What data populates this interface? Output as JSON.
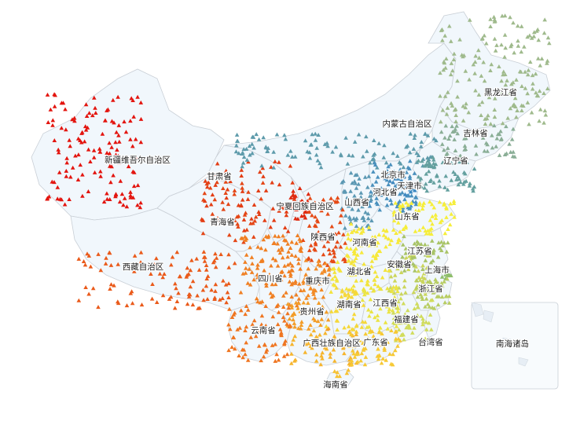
{
  "map": {
    "regions": [
      {
        "id": "xinjiang",
        "name": "新疆维吾尔自治区",
        "color": "#e3150f"
      },
      {
        "id": "xizang",
        "name": "西藏自治区",
        "color": "#ea5a1a"
      },
      {
        "id": "qinghai",
        "name": "青海省",
        "color": "#e44616"
      },
      {
        "id": "gansu",
        "name": "甘肃省",
        "color": "#e33d14"
      },
      {
        "id": "ningxia",
        "name": "宁夏回族自治区",
        "color": "#df2a10"
      },
      {
        "id": "neimenggu",
        "name": "内蒙古自治区",
        "color": "#5e9bab"
      },
      {
        "id": "heilongjiang",
        "name": "黑龙江省",
        "color": "#9fba8c"
      },
      {
        "id": "jilin",
        "name": "吉林省",
        "color": "#8aae96"
      },
      {
        "id": "liaoning",
        "name": "辽宁省",
        "color": "#64a09f"
      },
      {
        "id": "beijing",
        "name": "北京市",
        "color": "#3f87bd"
      },
      {
        "id": "tianjin",
        "name": "天津市",
        "color": "#3a86c0"
      },
      {
        "id": "hebei",
        "name": "河北省",
        "color": "#4a90bd"
      },
      {
        "id": "shanxi",
        "name": "山西省",
        "color": "#5b98b3"
      },
      {
        "id": "shaanxi",
        "name": "陕西省",
        "color": "#e54a16"
      },
      {
        "id": "shandong",
        "name": "山东省",
        "color": "#f6ee3a"
      },
      {
        "id": "henan",
        "name": "河南省",
        "color": "#f7e93a"
      },
      {
        "id": "jiangsu",
        "name": "江苏省",
        "color": "#a9c467"
      },
      {
        "id": "shanghai",
        "name": "上海市",
        "color": "#8fbe6c"
      },
      {
        "id": "anhui",
        "name": "安徽省",
        "color": "#cbd65c"
      },
      {
        "id": "zhejiang",
        "name": "浙江省",
        "color": "#b8cd63"
      },
      {
        "id": "hubei",
        "name": "湖北省",
        "color": "#f3e43c"
      },
      {
        "id": "sichuan",
        "name": "四川省",
        "color": "#f07f22"
      },
      {
        "id": "chongqing",
        "name": "重庆市",
        "color": "#f28a24"
      },
      {
        "id": "guizhou",
        "name": "贵州省",
        "color": "#f39d28"
      },
      {
        "id": "hunan",
        "name": "湖南省",
        "color": "#f5d83a"
      },
      {
        "id": "jiangxi",
        "name": "江西省",
        "color": "#eae444"
      },
      {
        "id": "fujian",
        "name": "福建省",
        "color": "#d1dc5c"
      },
      {
        "id": "yunnan",
        "name": "云南省",
        "color": "#ef7520"
      },
      {
        "id": "guangxi",
        "name": "广西壮族自治区",
        "color": "#f6b52e"
      },
      {
        "id": "guangdong",
        "name": "广东省",
        "color": "#f7c934"
      },
      {
        "id": "hainan",
        "name": "海南省",
        "color": "#f7c233"
      },
      {
        "id": "taiwan",
        "name": "台湾省",
        "color": "#f3f7fb"
      },
      {
        "id": "nanhai",
        "name": "南海诸岛",
        "color": "#f3f7fb"
      }
    ]
  }
}
